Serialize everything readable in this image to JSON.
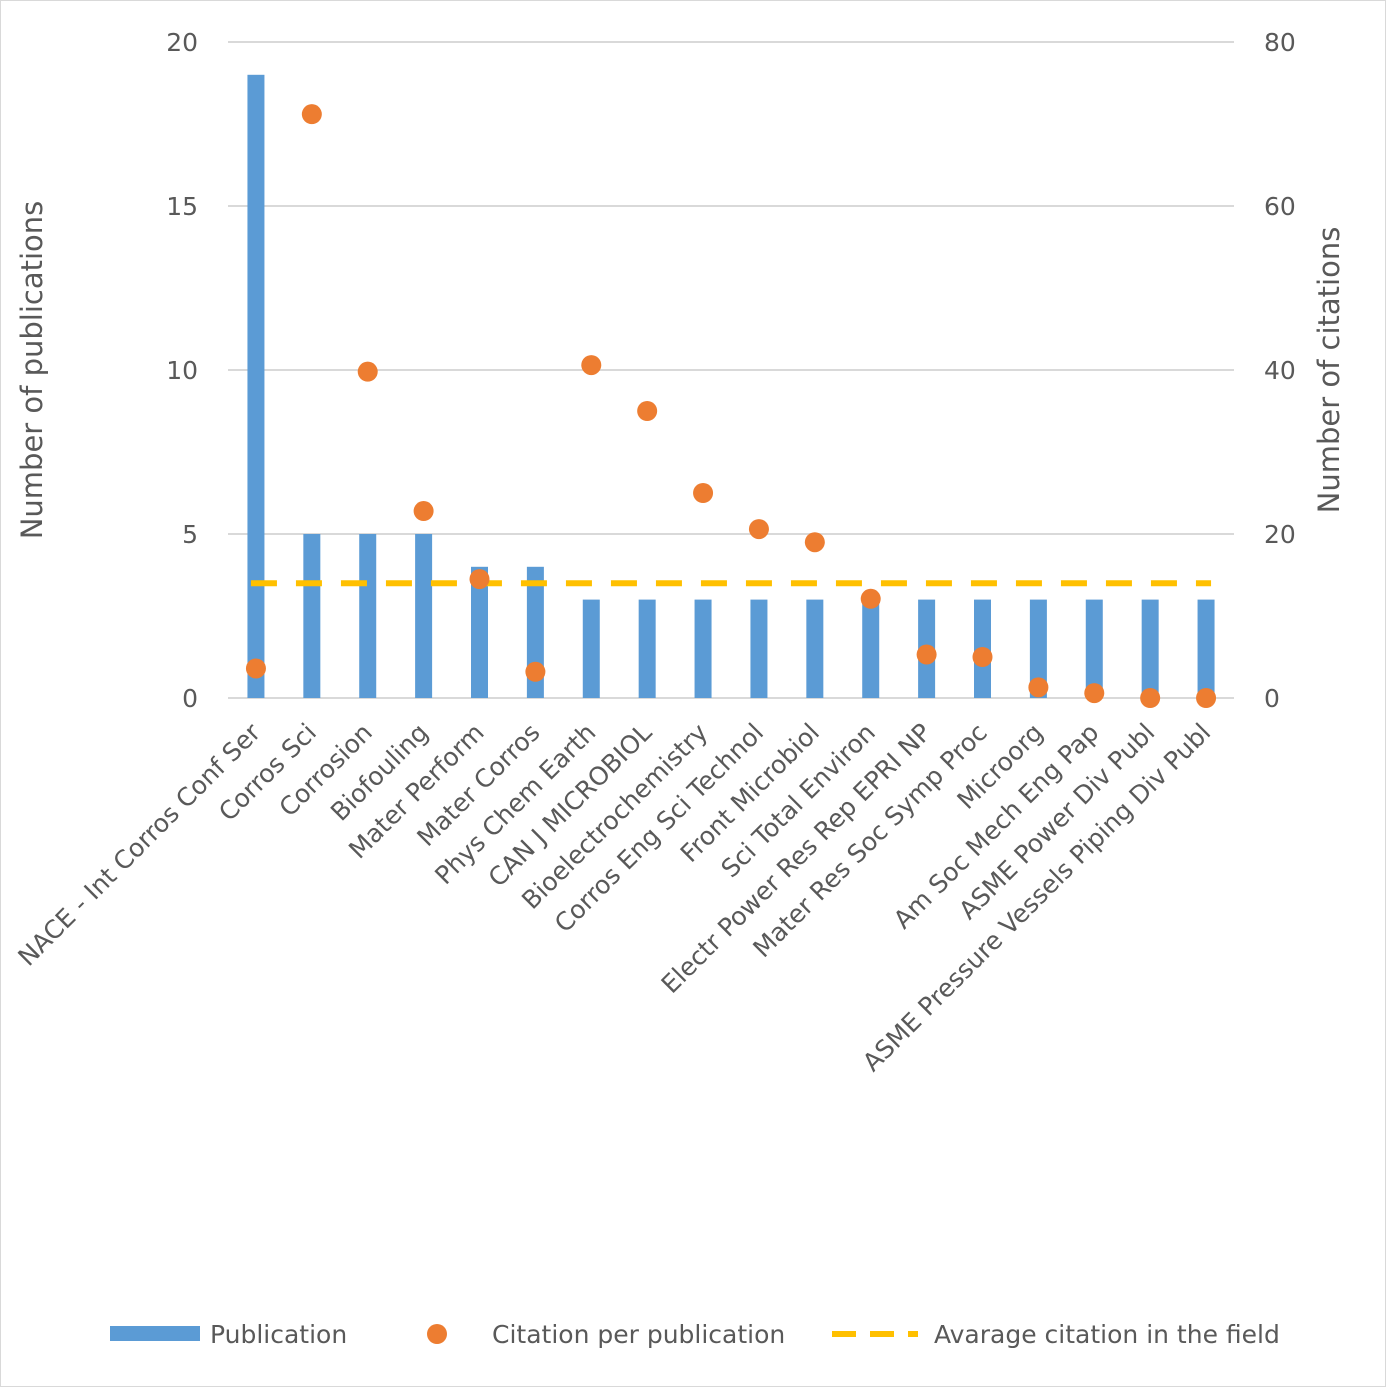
{
  "chart_data": {
    "type": "bar",
    "categories": [
      "NACE - Int Corros Conf Ser",
      "Corros Sci",
      "Corrosion",
      "Biofouling",
      "Mater Perform",
      "Mater Corros",
      "Phys Chem Earth",
      "CAN J MICROBIOL",
      "Bioelectrochemistry",
      "Corros Eng Sci Technol",
      "Front Microbiol",
      "Sci Total Environ",
      "Electr Power Res Rep EPRI NP",
      "Mater Res Soc Symp Proc",
      "Microorg",
      "Am Soc Mech Eng Pap",
      "ASME Power Div Publ",
      "ASME Pressure Vessels Piping Div Publ"
    ],
    "series": [
      {
        "name": "Publication",
        "kind": "bar",
        "axis": "left",
        "color": "#5b9bd5",
        "values": [
          19,
          5,
          5,
          5,
          4,
          4,
          3,
          3,
          3,
          3,
          3,
          3,
          3,
          3,
          3,
          3,
          3,
          3
        ]
      },
      {
        "name": "Citation per publication",
        "kind": "scatter",
        "axis": "right",
        "color": "#ed7d31",
        "values": [
          3.6,
          71.2,
          39.8,
          22.8,
          14.5,
          3.2,
          40.6,
          35.0,
          25.0,
          20.6,
          19.0,
          12.1,
          5.3,
          5.0,
          1.3,
          0.6,
          0.0,
          0.0
        ]
      },
      {
        "name": "Avarage citation in the field",
        "kind": "dashed-line",
        "axis": "right",
        "color": "#ffc000",
        "values": [
          14,
          14,
          14,
          14,
          14,
          14,
          14,
          14,
          14,
          14,
          14,
          14,
          14,
          14,
          14,
          14,
          14,
          14
        ]
      }
    ],
    "ylabel": "Number of publications",
    "y2label": "Number of citations",
    "ylim": [
      0,
      20
    ],
    "y2lim": [
      0,
      80
    ],
    "yticks": [
      0,
      5,
      10,
      15,
      20
    ],
    "y2ticks": [
      0,
      20,
      40,
      60,
      80
    ],
    "grid": true,
    "legend_position": "bottom"
  }
}
